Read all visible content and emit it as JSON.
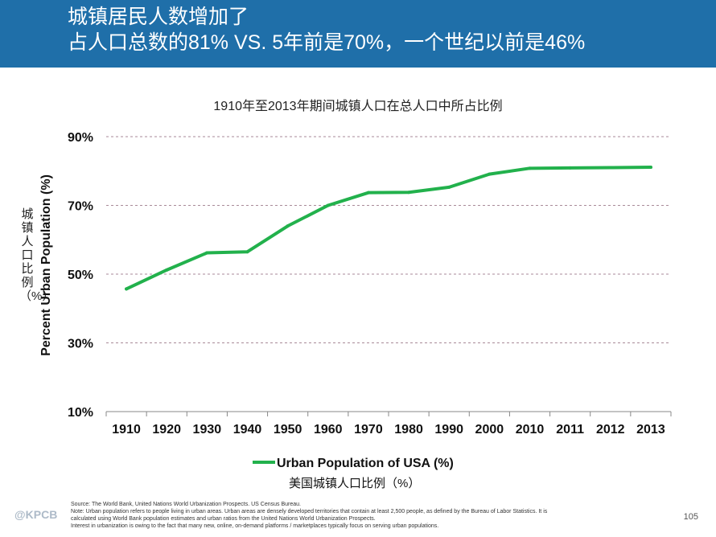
{
  "header": {
    "line1": "城镇居民人数增加了",
    "line2": "占人口总数的81% VS. 5年前是70%，一个世纪以前是46%"
  },
  "chart_data": {
    "type": "line",
    "title": "1910年至2013年期间城镇人口在总人口中所占比例",
    "xlabel": "",
    "ylabel": "Percent Urban Population (%)",
    "ylabel_cn": "城镇人口比例（%）",
    "categories": [
      "1910",
      "1920",
      "1930",
      "1940",
      "1950",
      "1960",
      "1970",
      "1980",
      "1990",
      "2000",
      "2010",
      "2011",
      "2012",
      "2013"
    ],
    "series": [
      {
        "name": "Urban Population of USA (%)",
        "name_cn": "美国城镇人口比例（%）",
        "color": "#22b14c",
        "values": [
          45.7,
          51.2,
          56.2,
          56.5,
          64.0,
          70.0,
          73.7,
          73.8,
          75.3,
          79.1,
          80.8,
          80.9,
          81.0,
          81.1
        ]
      }
    ],
    "ylim": [
      10,
      90
    ],
    "yticks": [
      10,
      30,
      50,
      70,
      90
    ],
    "ytick_labels": [
      "10%",
      "30%",
      "50%",
      "70%",
      "90%"
    ],
    "grid": "dashed-horizontal",
    "legend": "bottom-center"
  },
  "footer": {
    "source": "Source: The World Bank, United Nations World Urbanization Prospects. US Census Bureau.",
    "note1": "Note: Urban population refers to people living in urban areas. Urban areas are densely developed territories that contain at least 2,500 people, as defined by the Bureau of Labor Statistics. It is",
    "note2": "calculated using World Bank population estimates and urban ratios from the United Nations World Urbanization Prospects.",
    "note3": "Interest in urbanization is owing to the fact that many new, online, on-demand platforms / marketplaces typically focus on serving urban populations.",
    "page_number": "105",
    "logo_text": "KPCB"
  }
}
